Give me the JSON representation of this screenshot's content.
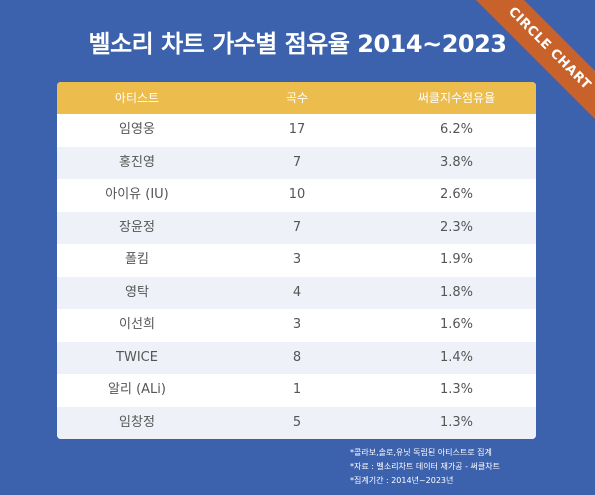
{
  "title": "벨소리 차트 가수별 점유율 2014~2023",
  "badge": "CIRCLE CHART",
  "chart_data": {
    "type": "table",
    "columns": [
      "아티스트",
      "곡수",
      "써클지수점유율"
    ],
    "rows": [
      {
        "artist": "임영웅",
        "count": "17",
        "share": "6.2%"
      },
      {
        "artist": "홍진영",
        "count": "7",
        "share": "3.8%"
      },
      {
        "artist": "아이유 (IU)",
        "count": "10",
        "share": "2.6%"
      },
      {
        "artist": "장윤정",
        "count": "7",
        "share": "2.3%"
      },
      {
        "artist": "폴킴",
        "count": "3",
        "share": "1.9%"
      },
      {
        "artist": "영탁",
        "count": "4",
        "share": "1.8%"
      },
      {
        "artist": "이선희",
        "count": "3",
        "share": "1.6%"
      },
      {
        "artist": "TWICE",
        "count": "8",
        "share": "1.4%"
      },
      {
        "artist": "알리 (ALi)",
        "count": "1",
        "share": "1.3%"
      },
      {
        "artist": "임창정",
        "count": "5",
        "share": "1.3%"
      }
    ]
  },
  "notes": [
    "*콜라보,솔로,유닛 독립된 아티스트로 집계",
    "*자료 : 벨소리차트 데이터 재가공 - 써클차트",
    "*집계기간 : 2014년~2023년"
  ]
}
